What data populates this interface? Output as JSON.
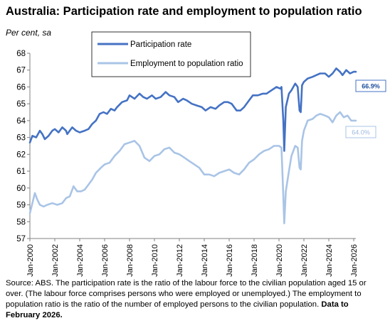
{
  "header": {
    "title": "Australia: Participation rate and employment to population ratio",
    "subtitle": "Per cent, sa"
  },
  "source": {
    "text": "Source: ABS.  The participation rate is the ratio of the labour force to the civilian population aged 15 or over.  (The labour force comprises persons who were employed or unemployed.)  The employment to population ratio is the ratio of the number of employed persons to the civilian population.",
    "bold": "Data to February 2026."
  },
  "chart_data": {
    "type": "line",
    "title": "Australia: Participation rate and employment to population ratio",
    "ylabel": "Per cent, sa",
    "ylim": [
      57,
      68
    ],
    "yticks": [
      57,
      58,
      59,
      60,
      61,
      62,
      63,
      64,
      65,
      66,
      67,
      68
    ],
    "xlim": [
      2000.0,
      2026.17
    ],
    "xticks": [
      {
        "value": 2000,
        "label": "Jan-2000"
      },
      {
        "value": 2002,
        "label": "Jan-2002"
      },
      {
        "value": 2004,
        "label": "Jan-2004"
      },
      {
        "value": 2006,
        "label": "Jan-2006"
      },
      {
        "value": 2008,
        "label": "Jan-2008"
      },
      {
        "value": 2010,
        "label": "Jan-2010"
      },
      {
        "value": 2012,
        "label": "Jan-2012"
      },
      {
        "value": 2014,
        "label": "Jan-2014"
      },
      {
        "value": 2016,
        "label": "Jan-2016"
      },
      {
        "value": 2018,
        "label": "Jan-2018"
      },
      {
        "value": 2020,
        "label": "Jan-2020"
      },
      {
        "value": 2022,
        "label": "Jan-2022"
      },
      {
        "value": 2024,
        "label": "Jan-2024"
      },
      {
        "value": 2026,
        "label": "Jan-2026"
      }
    ],
    "grid": false,
    "legend": "top-center",
    "series": [
      {
        "name": "Participation rate",
        "color": "#4472c4",
        "end_label": "66.9%",
        "points": [
          [
            2000.0,
            62.7
          ],
          [
            2000.2,
            63.1
          ],
          [
            2000.5,
            63.0
          ],
          [
            2000.8,
            63.4
          ],
          [
            2001.0,
            63.2
          ],
          [
            2001.2,
            62.9
          ],
          [
            2001.5,
            63.1
          ],
          [
            2001.8,
            63.4
          ],
          [
            2002.0,
            63.5
          ],
          [
            2002.3,
            63.3
          ],
          [
            2002.6,
            63.6
          ],
          [
            2002.9,
            63.4
          ],
          [
            2003.0,
            63.2
          ],
          [
            2003.4,
            63.6
          ],
          [
            2003.7,
            63.4
          ],
          [
            2004.0,
            63.3
          ],
          [
            2004.4,
            63.4
          ],
          [
            2004.7,
            63.5
          ],
          [
            2005.0,
            63.8
          ],
          [
            2005.3,
            64.0
          ],
          [
            2005.6,
            64.4
          ],
          [
            2005.9,
            64.5
          ],
          [
            2006.2,
            64.4
          ],
          [
            2006.5,
            64.7
          ],
          [
            2006.8,
            64.6
          ],
          [
            2007.0,
            64.8
          ],
          [
            2007.4,
            65.1
          ],
          [
            2007.8,
            65.2
          ],
          [
            2008.0,
            65.5
          ],
          [
            2008.4,
            65.3
          ],
          [
            2008.8,
            65.6
          ],
          [
            2009.1,
            65.4
          ],
          [
            2009.4,
            65.3
          ],
          [
            2009.8,
            65.5
          ],
          [
            2010.1,
            65.3
          ],
          [
            2010.5,
            65.4
          ],
          [
            2010.9,
            65.7
          ],
          [
            2011.2,
            65.5
          ],
          [
            2011.6,
            65.4
          ],
          [
            2011.9,
            65.1
          ],
          [
            2012.3,
            65.3
          ],
          [
            2012.6,
            65.2
          ],
          [
            2013.0,
            65.0
          ],
          [
            2013.4,
            64.9
          ],
          [
            2013.8,
            64.8
          ],
          [
            2014.1,
            64.6
          ],
          [
            2014.5,
            64.8
          ],
          [
            2014.9,
            64.7
          ],
          [
            2015.2,
            64.9
          ],
          [
            2015.6,
            65.1
          ],
          [
            2015.9,
            65.1
          ],
          [
            2016.2,
            65.0
          ],
          [
            2016.6,
            64.6
          ],
          [
            2016.9,
            64.6
          ],
          [
            2017.2,
            64.8
          ],
          [
            2017.6,
            65.2
          ],
          [
            2017.9,
            65.5
          ],
          [
            2018.3,
            65.5
          ],
          [
            2018.7,
            65.6
          ],
          [
            2019.0,
            65.6
          ],
          [
            2019.4,
            65.8
          ],
          [
            2019.8,
            66.0
          ],
          [
            2020.1,
            65.9
          ],
          [
            2020.2,
            66.0
          ],
          [
            2020.35,
            64.0
          ],
          [
            2020.42,
            62.2
          ],
          [
            2020.55,
            64.8
          ],
          [
            2020.8,
            65.6
          ],
          [
            2021.0,
            65.8
          ],
          [
            2021.3,
            66.2
          ],
          [
            2021.5,
            66.0
          ],
          [
            2021.65,
            64.6
          ],
          [
            2021.75,
            64.5
          ],
          [
            2021.85,
            66.1
          ],
          [
            2022.0,
            66.3
          ],
          [
            2022.3,
            66.5
          ],
          [
            2022.7,
            66.6
          ],
          [
            2023.0,
            66.7
          ],
          [
            2023.3,
            66.8
          ],
          [
            2023.7,
            66.8
          ],
          [
            2024.0,
            66.6
          ],
          [
            2024.3,
            66.8
          ],
          [
            2024.6,
            67.1
          ],
          [
            2024.9,
            66.9
          ],
          [
            2025.1,
            66.7
          ],
          [
            2025.4,
            67.0
          ],
          [
            2025.7,
            66.8
          ],
          [
            2026.0,
            66.9
          ],
          [
            2026.17,
            66.9
          ]
        ]
      },
      {
        "name": "Employment to population ratio",
        "color": "#a9c4e6",
        "end_label": "64.0%",
        "points": [
          [
            2000.0,
            58.5
          ],
          [
            2000.2,
            59.1
          ],
          [
            2000.4,
            59.7
          ],
          [
            2000.6,
            59.3
          ],
          [
            2000.8,
            59.0
          ],
          [
            2001.1,
            58.9
          ],
          [
            2001.4,
            59.0
          ],
          [
            2001.8,
            59.1
          ],
          [
            2002.2,
            59.0
          ],
          [
            2002.6,
            59.1
          ],
          [
            2002.9,
            59.4
          ],
          [
            2003.2,
            59.5
          ],
          [
            2003.5,
            60.1
          ],
          [
            2003.8,
            59.8
          ],
          [
            2004.1,
            59.8
          ],
          [
            2004.4,
            59.9
          ],
          [
            2004.7,
            60.2
          ],
          [
            2005.0,
            60.5
          ],
          [
            2005.3,
            60.9
          ],
          [
            2005.7,
            61.2
          ],
          [
            2006.0,
            61.4
          ],
          [
            2006.4,
            61.5
          ],
          [
            2006.8,
            61.9
          ],
          [
            2007.2,
            62.2
          ],
          [
            2007.6,
            62.6
          ],
          [
            2008.0,
            62.7
          ],
          [
            2008.4,
            62.8
          ],
          [
            2008.8,
            62.5
          ],
          [
            2009.2,
            61.8
          ],
          [
            2009.6,
            61.6
          ],
          [
            2010.0,
            61.9
          ],
          [
            2010.4,
            62.0
          ],
          [
            2010.8,
            62.3
          ],
          [
            2011.2,
            62.4
          ],
          [
            2011.6,
            62.1
          ],
          [
            2012.0,
            62.0
          ],
          [
            2012.4,
            61.8
          ],
          [
            2012.8,
            61.6
          ],
          [
            2013.2,
            61.4
          ],
          [
            2013.6,
            61.2
          ],
          [
            2014.0,
            60.8
          ],
          [
            2014.4,
            60.8
          ],
          [
            2014.8,
            60.7
          ],
          [
            2015.2,
            60.9
          ],
          [
            2015.6,
            61.0
          ],
          [
            2016.0,
            61.1
          ],
          [
            2016.4,
            60.9
          ],
          [
            2016.8,
            60.8
          ],
          [
            2017.2,
            61.1
          ],
          [
            2017.6,
            61.5
          ],
          [
            2018.0,
            61.7
          ],
          [
            2018.4,
            62.0
          ],
          [
            2018.8,
            62.2
          ],
          [
            2019.2,
            62.3
          ],
          [
            2019.6,
            62.5
          ],
          [
            2020.0,
            62.5
          ],
          [
            2020.2,
            62.4
          ],
          [
            2020.35,
            59.5
          ],
          [
            2020.42,
            57.9
          ],
          [
            2020.55,
            59.8
          ],
          [
            2020.8,
            61.0
          ],
          [
            2021.0,
            61.9
          ],
          [
            2021.3,
            62.5
          ],
          [
            2021.5,
            62.4
          ],
          [
            2021.65,
            61.2
          ],
          [
            2021.75,
            61.1
          ],
          [
            2021.85,
            62.8
          ],
          [
            2022.0,
            63.4
          ],
          [
            2022.3,
            64.0
          ],
          [
            2022.7,
            64.1
          ],
          [
            2023.0,
            64.3
          ],
          [
            2023.3,
            64.4
          ],
          [
            2023.7,
            64.3
          ],
          [
            2024.0,
            64.2
          ],
          [
            2024.3,
            63.9
          ],
          [
            2024.6,
            64.3
          ],
          [
            2024.9,
            64.5
          ],
          [
            2025.2,
            64.2
          ],
          [
            2025.5,
            64.3
          ],
          [
            2025.8,
            64.0
          ],
          [
            2026.0,
            64.0
          ],
          [
            2026.17,
            64.0
          ]
        ]
      }
    ]
  }
}
